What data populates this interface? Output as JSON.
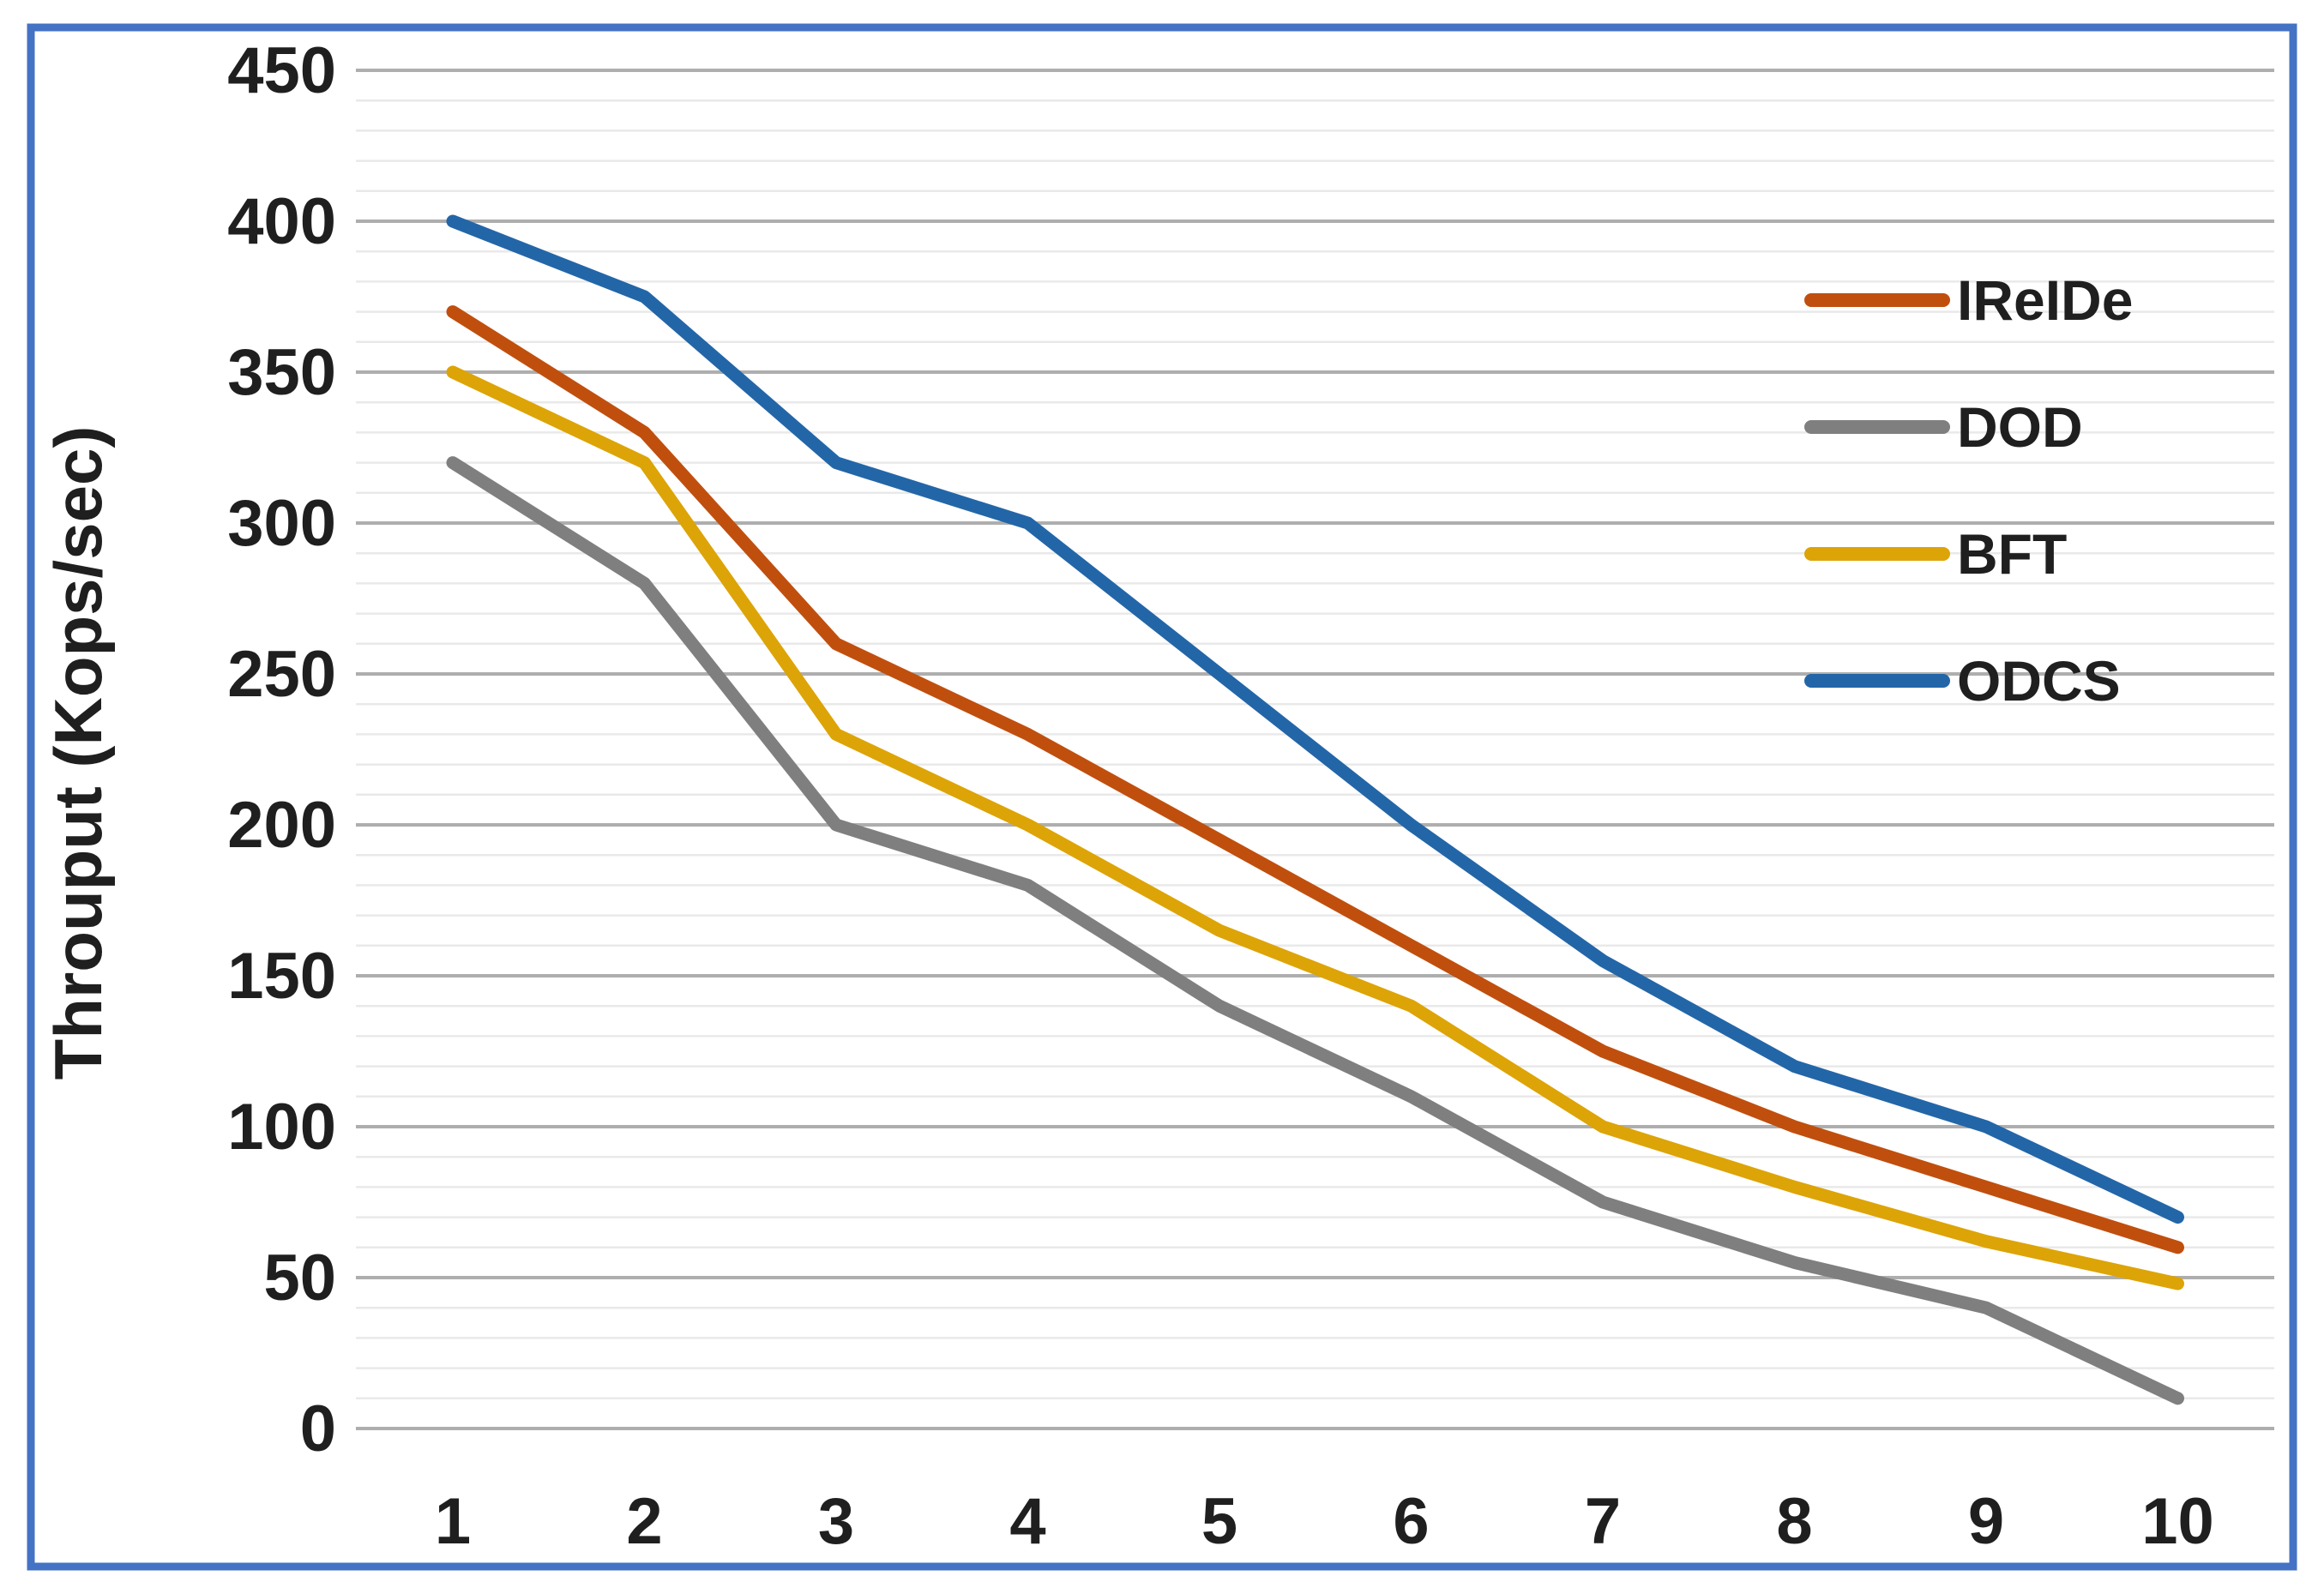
{
  "figure": {
    "background": "#FFFFFF",
    "border_color": "#4472C4"
  },
  "chart_data": {
    "type": "line",
    "title": "",
    "xlabel": "",
    "ylabel": "Throuput (Kops/sec)",
    "x": [
      1,
      2,
      3,
      4,
      5,
      6,
      7,
      8,
      9,
      10
    ],
    "ylim": [
      0,
      450
    ],
    "ytick_step": 50,
    "yminor_step": 10,
    "grid": "horizontal-major-and-minor",
    "legend_position": "upper-right",
    "legend_entries": [
      "IReIDe",
      "DOD",
      "BFT",
      "ODCS"
    ],
    "series": [
      {
        "name": "IReIDe",
        "color": "#C04F0E",
        "values": [
          370,
          330,
          260,
          230,
          195,
          160,
          125,
          100,
          80,
          60
        ]
      },
      {
        "name": "DOD",
        "color": "#7F7F7F",
        "values": [
          320,
          280,
          200,
          180,
          140,
          110,
          75,
          55,
          40,
          10
        ]
      },
      {
        "name": "BFT",
        "color": "#DDA407",
        "values": [
          350,
          320,
          230,
          200,
          165,
          140,
          100,
          80,
          62,
          48
        ]
      },
      {
        "name": "ODCS",
        "color": "#2366A8",
        "values": [
          400,
          375,
          320,
          300,
          250,
          200,
          155,
          120,
          100,
          70
        ]
      }
    ]
  }
}
